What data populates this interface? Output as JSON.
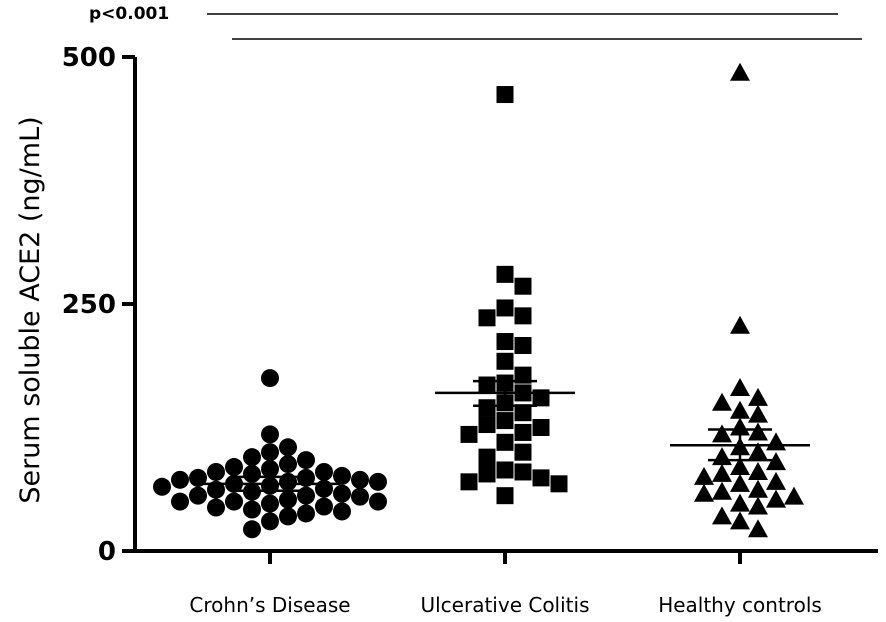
{
  "chart_data": {
    "type": "scatter",
    "title": "",
    "ylabel": "Serum soluble ACE2 (ng/mL)",
    "xlabel": "",
    "ylim": [
      0,
      500
    ],
    "yticks": [
      0,
      250,
      500
    ],
    "categories": [
      "Crohn’s Disease",
      "Ulcerative Colitis",
      "Healthy controls"
    ],
    "significance": {
      "label": "p<0.001"
    },
    "grid": false,
    "series": [
      {
        "marker": "circle",
        "mean": 68,
        "sem_low": 61,
        "sem_high": 75,
        "values": [
          175,
          118,
          105,
          100,
          95,
          92,
          88,
          85,
          83,
          80,
          78,
          76,
          74,
          72,
          72,
          70,
          68,
          66,
          65,
          63,
          62,
          60,
          58,
          56,
          55,
          52,
          50,
          50,
          48,
          45,
          42,
          40,
          38,
          35,
          30,
          22,
          80,
          74,
          70,
          56,
          50,
          44
        ]
      },
      {
        "marker": "square",
        "mean": 160,
        "sem_low": 147,
        "sem_high": 172,
        "values": [
          462,
          280,
          268,
          246,
          238,
          236,
          212,
          208,
          192,
          178,
          170,
          168,
          160,
          155,
          150,
          145,
          140,
          132,
          128,
          125,
          120,
          118,
          110,
          100,
          95,
          82,
          80,
          78,
          74,
          70,
          68,
          56
        ]
      },
      {
        "marker": "triangle",
        "mean": 107,
        "sem_low": 92,
        "sem_high": 123,
        "values": [
          484,
          228,
          165,
          155,
          150,
          142,
          138,
          125,
          120,
          118,
          110,
          105,
          100,
          95,
          90,
          85,
          80,
          78,
          75,
          70,
          68,
          62,
          60,
          58,
          55,
          52,
          48,
          45,
          35,
          30,
          22
        ]
      }
    ]
  }
}
